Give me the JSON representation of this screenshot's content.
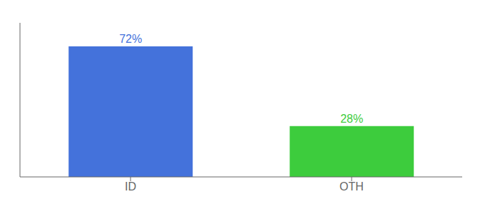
{
  "chart_data": {
    "type": "bar",
    "categories": [
      "ID",
      "OTH"
    ],
    "values": [
      72,
      28
    ],
    "value_labels": [
      "72%",
      "28%"
    ],
    "colors": [
      "#4472db",
      "#3dcc3d"
    ],
    "ylim": [
      0,
      85
    ],
    "data_labels": true,
    "tick_labels": "x",
    "grid": false
  }
}
